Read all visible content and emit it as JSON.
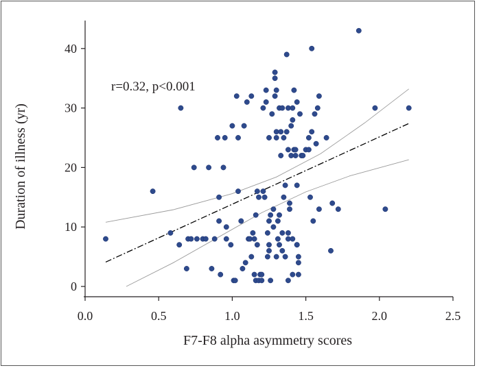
{
  "chart_data": {
    "type": "scatter",
    "title": "",
    "xlabel": "F7-F8 alpha asymmetry scores",
    "ylabel": "Duration of illness (yr)",
    "xlim": [
      0.0,
      2.5
    ],
    "ylim": [
      0,
      45
    ],
    "xticks": [
      "0.0",
      "0.5",
      "1.0",
      "1.5",
      "2.0",
      "2.5"
    ],
    "yticks": [
      "0",
      "10",
      "20",
      "30",
      "40"
    ],
    "grid": false,
    "legend": "none",
    "annotation": "r=0.32, p<0.001",
    "colors": {
      "points": "#2e4a8c",
      "fit_line": "#000000",
      "ci_lines": "#9a9a9a"
    },
    "regression": {
      "x": [
        0.14,
        2.2
      ],
      "y": [
        4.1,
        27.4
      ]
    },
    "ci_upper": {
      "x": [
        0.14,
        0.6,
        1.0,
        1.3,
        1.6,
        1.9,
        2.2
      ],
      "y": [
        10.8,
        12.9,
        15.6,
        18.4,
        22.3,
        27.5,
        33.2
      ]
    },
    "ci_lower": {
      "x": [
        0.28,
        0.6,
        0.9,
        1.2,
        1.5,
        1.8,
        2.2
      ],
      "y": [
        0.0,
        4.0,
        8.2,
        12.4,
        15.9,
        18.6,
        21.3
      ]
    },
    "points": [
      [
        0.14,
        8
      ],
      [
        0.46,
        16
      ],
      [
        0.58,
        9
      ],
      [
        0.64,
        7
      ],
      [
        0.65,
        30
      ],
      [
        0.69,
        3
      ],
      [
        0.7,
        8
      ],
      [
        0.72,
        8
      ],
      [
        0.74,
        20
      ],
      [
        0.76,
        8
      ],
      [
        0.8,
        8
      ],
      [
        0.82,
        8
      ],
      [
        0.84,
        20
      ],
      [
        0.86,
        3
      ],
      [
        0.88,
        8
      ],
      [
        0.9,
        25
      ],
      [
        0.91,
        11
      ],
      [
        0.91,
        15
      ],
      [
        0.92,
        2
      ],
      [
        0.94,
        20
      ],
      [
        0.95,
        25
      ],
      [
        0.96,
        8
      ],
      [
        0.96,
        10
      ],
      [
        0.99,
        7
      ],
      [
        1.0,
        27
      ],
      [
        1.01,
        1
      ],
      [
        1.02,
        1
      ],
      [
        1.03,
        32
      ],
      [
        1.04,
        16
      ],
      [
        1.04,
        25
      ],
      [
        1.06,
        11
      ],
      [
        1.07,
        3
      ],
      [
        1.08,
        27
      ],
      [
        1.09,
        4
      ],
      [
        1.1,
        31
      ],
      [
        1.11,
        8
      ],
      [
        1.12,
        8
      ],
      [
        1.13,
        32
      ],
      [
        1.13,
        5
      ],
      [
        1.14,
        9
      ],
      [
        1.15,
        2
      ],
      [
        1.15,
        8
      ],
      [
        1.16,
        1
      ],
      [
        1.16,
        12
      ],
      [
        1.17,
        7
      ],
      [
        1.17,
        16
      ],
      [
        1.18,
        1
      ],
      [
        1.18,
        15
      ],
      [
        1.19,
        2
      ],
      [
        1.2,
        2
      ],
      [
        1.2,
        1
      ],
      [
        1.21,
        16
      ],
      [
        1.21,
        30
      ],
      [
        1.22,
        15
      ],
      [
        1.23,
        31
      ],
      [
        1.23,
        33
      ],
      [
        1.24,
        5
      ],
      [
        1.24,
        9
      ],
      [
        1.25,
        6
      ],
      [
        1.25,
        7
      ],
      [
        1.25,
        11
      ],
      [
        1.25,
        25
      ],
      [
        1.26,
        12
      ],
      [
        1.26,
        1
      ],
      [
        1.27,
        29
      ],
      [
        1.28,
        13
      ],
      [
        1.28,
        10
      ],
      [
        1.29,
        32
      ],
      [
        1.29,
        35
      ],
      [
        1.29,
        36
      ],
      [
        1.3,
        5
      ],
      [
        1.3,
        26
      ],
      [
        1.3,
        25
      ],
      [
        1.3,
        33
      ],
      [
        1.31,
        11
      ],
      [
        1.31,
        8
      ],
      [
        1.32,
        12
      ],
      [
        1.32,
        7
      ],
      [
        1.32,
        30
      ],
      [
        1.33,
        26
      ],
      [
        1.33,
        22
      ],
      [
        1.34,
        9
      ],
      [
        1.34,
        6
      ],
      [
        1.34,
        30
      ],
      [
        1.35,
        15
      ],
      [
        1.35,
        25
      ],
      [
        1.36,
        17
      ],
      [
        1.36,
        5
      ],
      [
        1.37,
        26
      ],
      [
        1.37,
        39
      ],
      [
        1.38,
        23
      ],
      [
        1.38,
        30
      ],
      [
        1.38,
        9
      ],
      [
        1.38,
        8
      ],
      [
        1.38,
        1
      ],
      [
        1.39,
        14
      ],
      [
        1.39,
        13
      ],
      [
        1.4,
        22
      ],
      [
        1.4,
        27
      ],
      [
        1.41,
        2
      ],
      [
        1.41,
        8
      ],
      [
        1.41,
        28
      ],
      [
        1.41,
        30
      ],
      [
        1.42,
        23
      ],
      [
        1.42,
        33
      ],
      [
        1.43,
        22
      ],
      [
        1.43,
        23
      ],
      [
        1.44,
        7
      ],
      [
        1.44,
        31
      ],
      [
        1.44,
        17
      ],
      [
        1.44,
        7
      ],
      [
        1.45,
        5
      ],
      [
        1.45,
        4
      ],
      [
        1.45,
        2
      ],
      [
        1.46,
        29
      ],
      [
        1.47,
        22
      ],
      [
        1.48,
        22
      ],
      [
        1.5,
        23
      ],
      [
        1.52,
        23
      ],
      [
        1.52,
        25
      ],
      [
        1.53,
        15
      ],
      [
        1.54,
        40
      ],
      [
        1.54,
        26
      ],
      [
        1.55,
        11
      ],
      [
        1.56,
        29
      ],
      [
        1.57,
        24
      ],
      [
        1.58,
        30
      ],
      [
        1.59,
        13
      ],
      [
        1.59,
        32
      ],
      [
        1.64,
        25
      ],
      [
        1.67,
        6
      ],
      [
        1.68,
        14
      ],
      [
        1.72,
        13
      ],
      [
        1.86,
        43
      ],
      [
        1.97,
        30
      ],
      [
        2.04,
        13
      ],
      [
        2.2,
        30
      ]
    ]
  }
}
